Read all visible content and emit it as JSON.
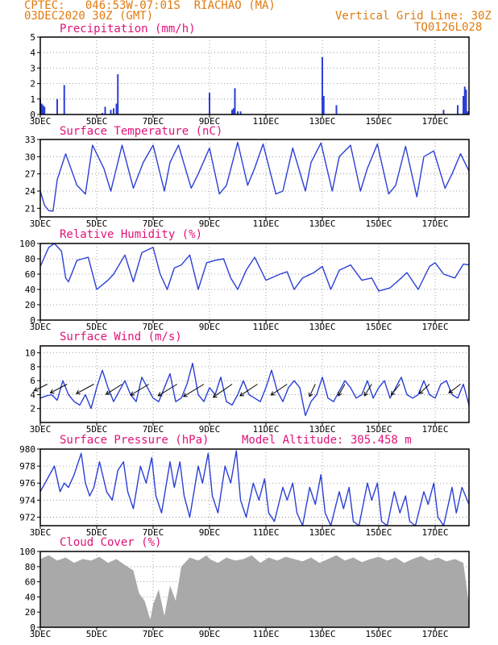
{
  "header": {
    "line1": "CPTEC:   046:53W-07:01S  RIACHAO (MA)",
    "line2": "03DEC2020 30Z (GMT)",
    "right1": "Vertical Grid Line: 30Z",
    "right2": "TQ0126L028"
  },
  "x_ticks": [
    "3DEC",
    "5DEC",
    "7DEC",
    "9DEC",
    "11DEC",
    "13DEC",
    "15DEC",
    "17DEC"
  ],
  "x_tick_days": [
    0,
    2,
    4,
    6,
    8,
    10,
    12,
    14
  ],
  "x_start_day": 0,
  "x_end_day": 15.2,
  "colors": {
    "line": "#2b3fd6",
    "cloud": "#a9a9a9",
    "title": "#e0137a",
    "header": "#e07a10",
    "grid": "#888888"
  },
  "chart_data": [
    {
      "id": "precip",
      "type": "bar",
      "title": "Precipitation (mm/h)",
      "ylim": [
        0,
        5
      ],
      "yticks": [
        0,
        1,
        2,
        3,
        4,
        5
      ],
      "x_unit": "days since 3DEC 00Z",
      "x": [
        0.0,
        0.05,
        0.1,
        0.15,
        0.6,
        0.85,
        2.2,
        2.3,
        2.5,
        2.6,
        2.7,
        2.75,
        6.0,
        6.8,
        6.85,
        6.9,
        7.0,
        7.1,
        10.0,
        10.05,
        10.5,
        14.3,
        14.8,
        15.0,
        15.05,
        15.1,
        15.15
      ],
      "values": [
        1.0,
        0.7,
        0.6,
        0.5,
        1.0,
        1.9,
        0.1,
        0.5,
        0.3,
        0.4,
        0.7,
        2.6,
        1.4,
        0.3,
        0.4,
        1.7,
        0.2,
        0.2,
        3.7,
        1.2,
        0.6,
        0.3,
        0.6,
        1.2,
        1.8,
        1.6,
        0.2
      ]
    },
    {
      "id": "temp",
      "type": "line",
      "title": "Surface Temperature (nC)",
      "ylim": [
        19.5,
        33
      ],
      "yticks": [
        21,
        24,
        27,
        30,
        33
      ],
      "x": [
        0.0,
        0.15,
        0.3,
        0.45,
        0.6,
        0.8,
        0.9,
        1.3,
        1.6,
        1.85,
        2.25,
        2.5,
        2.9,
        3.3,
        3.65,
        4.0,
        4.4,
        4.6,
        4.9,
        5.35,
        5.6,
        6.0,
        6.35,
        6.6,
        7.0,
        7.35,
        7.6,
        7.9,
        8.35,
        8.6,
        8.95,
        9.4,
        9.6,
        9.95,
        10.35,
        10.6,
        11.0,
        11.35,
        11.6,
        11.95,
        12.35,
        12.6,
        12.95,
        13.35,
        13.6,
        13.95,
        14.35,
        14.6,
        14.9,
        15.2
      ],
      "values": [
        24,
        21.5,
        20.6,
        20.5,
        26,
        29,
        30.5,
        25,
        23.5,
        32.0,
        28,
        24,
        32.0,
        24.5,
        29,
        32.0,
        24.0,
        29,
        32.0,
        24.5,
        27,
        31.5,
        23.5,
        25,
        32.5,
        25,
        28,
        32.2,
        23.5,
        24,
        31.5,
        24.0,
        29,
        32.4,
        24.0,
        30,
        32.0,
        24.0,
        28,
        32.2,
        23.5,
        25,
        31.8,
        23.0,
        30,
        31.0,
        24.5,
        27,
        30.5,
        27.5
      ]
    },
    {
      "id": "rh",
      "type": "line",
      "title": "Relative Humidity (%)",
      "ylim": [
        0,
        100
      ],
      "yticks": [
        0,
        20,
        40,
        60,
        80,
        100
      ],
      "x": [
        0.0,
        0.3,
        0.5,
        0.75,
        0.9,
        1.0,
        1.3,
        1.5,
        1.7,
        2.0,
        2.4,
        2.6,
        3.0,
        3.3,
        3.6,
        4.0,
        4.25,
        4.5,
        4.75,
        5.0,
        5.3,
        5.6,
        5.9,
        6.2,
        6.5,
        6.75,
        7.0,
        7.3,
        7.6,
        8.0,
        8.5,
        8.75,
        9.0,
        9.3,
        9.7,
        10.0,
        10.3,
        10.6,
        11.0,
        11.4,
        11.75,
        12.0,
        12.4,
        12.8,
        13.0,
        13.4,
        13.8,
        14.0,
        14.3,
        14.7,
        15.0,
        15.2
      ],
      "values": [
        70,
        95,
        100,
        90,
        55,
        50,
        78,
        80,
        82,
        40,
        52,
        60,
        85,
        50,
        88,
        95,
        60,
        40,
        68,
        72,
        85,
        40,
        75,
        78,
        80,
        55,
        40,
        65,
        82,
        52,
        60,
        63,
        40,
        55,
        62,
        70,
        40,
        65,
        72,
        52,
        55,
        38,
        42,
        55,
        62,
        40,
        70,
        75,
        60,
        55,
        73,
        72
      ]
    },
    {
      "id": "wind",
      "type": "line",
      "title": "Surface Wind (m/s)",
      "ylim": [
        0,
        11
      ],
      "yticks": [
        2,
        4,
        6,
        8,
        10
      ],
      "x": [
        0.0,
        0.2,
        0.4,
        0.6,
        0.8,
        1.0,
        1.2,
        1.4,
        1.6,
        1.8,
        2.0,
        2.2,
        2.4,
        2.6,
        2.8,
        3.0,
        3.2,
        3.4,
        3.6,
        3.8,
        4.0,
        4.2,
        4.4,
        4.6,
        4.8,
        5.0,
        5.2,
        5.4,
        5.6,
        5.8,
        6.0,
        6.2,
        6.4,
        6.6,
        6.8,
        7.0,
        7.2,
        7.4,
        7.6,
        7.8,
        8.0,
        8.2,
        8.4,
        8.6,
        8.8,
        9.0,
        9.2,
        9.4,
        9.6,
        9.8,
        10.0,
        10.2,
        10.4,
        10.6,
        10.8,
        11.0,
        11.2,
        11.4,
        11.6,
        11.8,
        12.0,
        12.2,
        12.4,
        12.6,
        12.8,
        13.0,
        13.2,
        13.4,
        13.6,
        13.8,
        14.0,
        14.2,
        14.4,
        14.6,
        14.8,
        15.0,
        15.2
      ],
      "values": [
        3.5,
        3.8,
        4.0,
        3.2,
        6.0,
        4.0,
        3.0,
        2.5,
        4.0,
        2.0,
        5.0,
        7.5,
        5.0,
        3.0,
        4.5,
        6.0,
        4.0,
        3.0,
        6.5,
        5.0,
        3.5,
        3.0,
        5.0,
        7.0,
        3.0,
        3.5,
        5.5,
        8.5,
        4.0,
        3.0,
        5.0,
        4.0,
        6.5,
        3.0,
        2.5,
        4.0,
        6.0,
        4.0,
        3.5,
        3.0,
        5.0,
        7.5,
        4.5,
        3.0,
        5.0,
        6.0,
        5.0,
        1.0,
        3.0,
        4.0,
        6.5,
        3.5,
        3.0,
        4.5,
        6.0,
        5.0,
        3.5,
        4.0,
        6.0,
        3.5,
        5.0,
        6.0,
        3.5,
        5.0,
        6.5,
        4.0,
        3.5,
        4.0,
        6.0,
        4.0,
        3.5,
        5.5,
        6.0,
        4.0,
        3.5,
        5.5,
        2.5
      ]
    },
    {
      "id": "wind_vectors",
      "type": "vector",
      "title": "",
      "x": [
        0.25,
        0.95,
        1.9,
        2.9,
        3.85,
        4.85,
        5.8,
        6.8,
        7.7,
        8.75,
        9.75,
        10.8,
        11.75,
        12.75,
        13.8,
        14.9
      ],
      "u": [
        -1.8,
        -2.3,
        -2.4,
        -2.2,
        -2.5,
        -2.6,
        -2.8,
        -2.6,
        -2.4,
        -2.2,
        -0.8,
        -0.9,
        -1.0,
        -1.2,
        -1.4,
        -1.6
      ],
      "v": [
        -0.9,
        -1.2,
        -1.3,
        -1.4,
        -1.5,
        -1.6,
        -1.7,
        -1.8,
        -1.6,
        -1.5,
        -1.7,
        -1.6,
        -1.6,
        -1.5,
        -1.3,
        -1.2
      ],
      "y_anchor": 5.5
    },
    {
      "id": "pressure",
      "type": "line",
      "title": "Surface Pressure (hPa)",
      "ylim": [
        971,
        980
      ],
      "yticks": [
        972,
        974,
        976,
        978,
        980
      ],
      "x": [
        0.0,
        0.25,
        0.5,
        0.7,
        0.85,
        1.0,
        1.2,
        1.45,
        1.6,
        1.75,
        1.9,
        2.1,
        2.35,
        2.55,
        2.75,
        2.95,
        3.1,
        3.3,
        3.55,
        3.75,
        3.95,
        4.1,
        4.3,
        4.6,
        4.75,
        4.95,
        5.1,
        5.3,
        5.6,
        5.75,
        5.95,
        6.1,
        6.3,
        6.55,
        6.75,
        6.95,
        7.1,
        7.3,
        7.55,
        7.75,
        7.95,
        8.1,
        8.3,
        8.6,
        8.75,
        8.95,
        9.1,
        9.3,
        9.55,
        9.75,
        9.95,
        10.1,
        10.3,
        10.6,
        10.75,
        10.95,
        11.1,
        11.3,
        11.6,
        11.75,
        11.95,
        12.1,
        12.3,
        12.55,
        12.75,
        12.95,
        13.1,
        13.3,
        13.6,
        13.75,
        13.95,
        14.1,
        14.3,
        14.6,
        14.75,
        14.95,
        15.2
      ],
      "values": [
        975,
        976.5,
        978,
        975,
        976,
        975.5,
        977,
        979.5,
        976,
        974.5,
        975.5,
        978.5,
        975,
        974,
        977.5,
        978.5,
        975,
        973,
        978,
        976,
        979,
        974.5,
        972.5,
        978.5,
        975.5,
        978.5,
        974.5,
        972,
        978,
        976,
        979.5,
        974.5,
        972.5,
        978,
        976,
        979.8,
        974,
        972,
        976,
        974,
        976.5,
        972.5,
        971.5,
        975.5,
        974,
        976,
        972.5,
        971,
        975.5,
        973.5,
        977,
        972.5,
        971,
        975,
        973,
        975.5,
        971.5,
        971,
        976,
        974,
        976,
        971.5,
        971,
        975,
        972.5,
        974.5,
        971.5,
        971,
        975,
        973.5,
        976,
        972,
        971,
        975.5,
        972.5,
        975.5,
        973.5
      ]
    },
    {
      "id": "cloud",
      "type": "area",
      "title": "Cloud Cover (%)",
      "ylim": [
        0,
        100
      ],
      "yticks": [
        0,
        20,
        40,
        60,
        80,
        100
      ],
      "x": [
        0.0,
        0.3,
        0.6,
        0.9,
        1.2,
        1.5,
        1.8,
        2.1,
        2.4,
        2.7,
        3.0,
        3.3,
        3.5,
        3.7,
        3.9,
        4.0,
        4.2,
        4.4,
        4.6,
        4.8,
        5.0,
        5.3,
        5.6,
        5.9,
        6.0,
        6.3,
        6.6,
        6.9,
        7.2,
        7.5,
        7.8,
        8.1,
        8.4,
        8.7,
        9.0,
        9.3,
        9.6,
        9.9,
        10.2,
        10.5,
        10.8,
        11.1,
        11.4,
        11.7,
        12.0,
        12.3,
        12.6,
        12.9,
        13.2,
        13.5,
        13.8,
        14.1,
        14.4,
        14.7,
        15.0,
        15.2
      ],
      "values": [
        90,
        95,
        88,
        92,
        85,
        90,
        88,
        93,
        85,
        90,
        82,
        75,
        45,
        35,
        10,
        30,
        50,
        15,
        55,
        35,
        80,
        92,
        88,
        95,
        90,
        85,
        92,
        88,
        90,
        95,
        85,
        92,
        88,
        93,
        90,
        87,
        92,
        85,
        90,
        95,
        88,
        92,
        86,
        90,
        93,
        88,
        92,
        85,
        90,
        94,
        88,
        92,
        87,
        90,
        85,
        30
      ]
    }
  ],
  "model_altitude": "Model Altitude: 305.458 m"
}
